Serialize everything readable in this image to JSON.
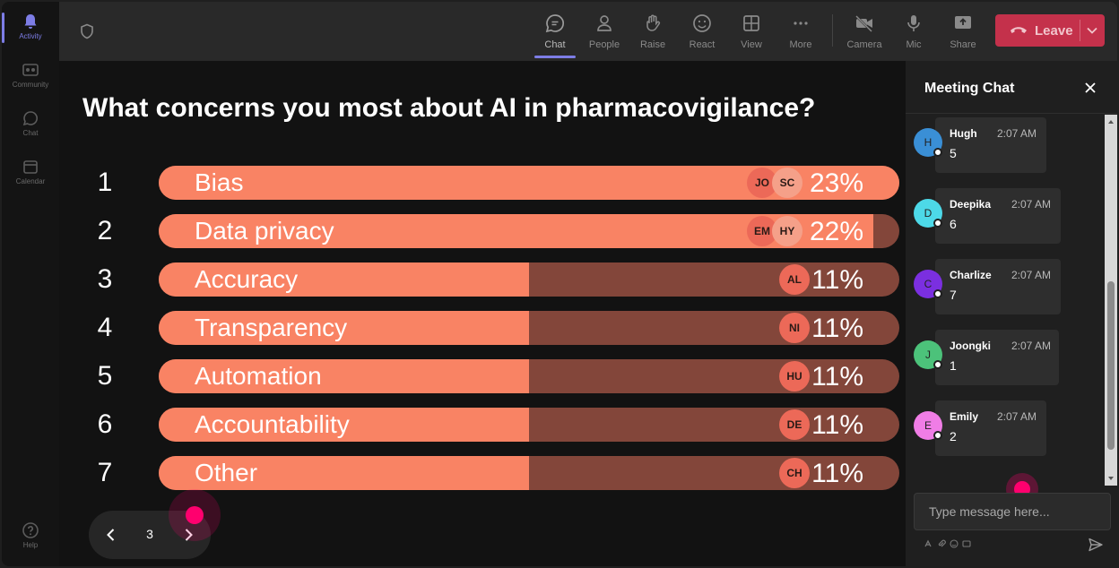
{
  "rail": {
    "items": [
      {
        "label": "Activity",
        "icon": "bell-icon",
        "active": true
      },
      {
        "label": "Community",
        "icon": "community-icon"
      },
      {
        "label": "Chat",
        "icon": "chat-icon"
      },
      {
        "label": "Calendar",
        "icon": "calendar-icon"
      }
    ],
    "help_label": "Help"
  },
  "toolbar": {
    "chat": "Chat",
    "people": "People",
    "raise": "Raise",
    "react": "React",
    "view": "View",
    "more": "More",
    "camera": "Camera",
    "mic": "Mic",
    "share": "Share",
    "leave": "Leave"
  },
  "poll": {
    "question": "What concerns you most about AI in pharmacovigilance?",
    "options": [
      {
        "rank": "1",
        "label": "Bias",
        "percent": 23,
        "pct_text": "23%",
        "avatars": [
          "JO",
          "SC"
        ]
      },
      {
        "rank": "2",
        "label": "Data privacy",
        "percent": 22,
        "pct_text": "22%",
        "avatars": [
          "EM",
          "HY"
        ]
      },
      {
        "rank": "3",
        "label": "Accuracy",
        "percent": 11,
        "pct_text": "11%",
        "avatars": [
          "AL"
        ]
      },
      {
        "rank": "4",
        "label": "Transparency",
        "percent": 11,
        "pct_text": "11%",
        "avatars": [
          "NI"
        ]
      },
      {
        "rank": "5",
        "label": "Automation",
        "percent": 11,
        "pct_text": "11%",
        "avatars": [
          "HU"
        ]
      },
      {
        "rank": "6",
        "label": "Accountability",
        "percent": 11,
        "pct_text": "11%",
        "avatars": [
          "DE"
        ]
      },
      {
        "rank": "7",
        "label": "Other",
        "percent": 11,
        "pct_text": "11%",
        "avatars": [
          "CH"
        ]
      }
    ]
  },
  "pager": {
    "page": "3"
  },
  "chat": {
    "title": "Meeting Chat",
    "messages": [
      {
        "initial": "H",
        "name": "Hugh",
        "time": "2:07 AM",
        "text": "5",
        "color": "#3a8fd6"
      },
      {
        "initial": "D",
        "name": "Deepika",
        "time": "2:07 AM",
        "text": "6",
        "color": "#4dd9e8"
      },
      {
        "initial": "C",
        "name": "Charlize",
        "time": "2:07 AM",
        "text": "7",
        "color": "#7b2fe0"
      },
      {
        "initial": "J",
        "name": "Joongki",
        "time": "2:07 AM",
        "text": "1",
        "color": "#4cc27a"
      },
      {
        "initial": "E",
        "name": "Emily",
        "time": "2:07 AM",
        "text": "2",
        "color": "#f07de6"
      }
    ],
    "placeholder": "Type message here..."
  },
  "colors": {
    "bar_fill": "#f98364",
    "bar_track": "#83463a",
    "leave": "#c4314b",
    "accent": "#7d7de6"
  }
}
